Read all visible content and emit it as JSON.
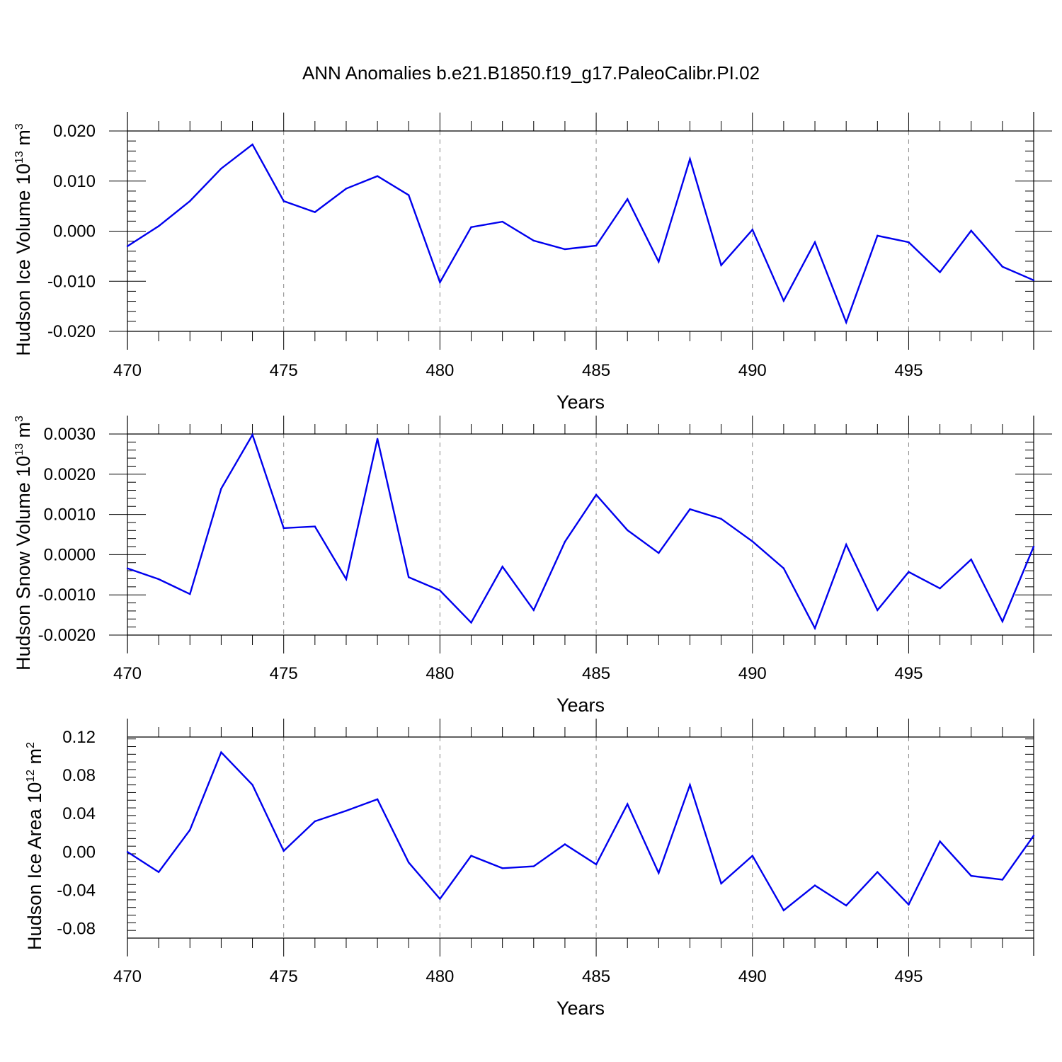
{
  "title": "ANN Anomalies b.e21.B1850.f19_g17.PaleoCalibr.PI.02",
  "line_color": "#0000ee",
  "chart_data": [
    {
      "type": "line",
      "xlabel": "Years",
      "ylabel": {
        "base": "Hudson Ice Volume 10",
        "exp": "13",
        "unit": " m",
        "unit_exp": "3"
      },
      "xlim": [
        470,
        499
      ],
      "ylim": [
        -0.02,
        0.02
      ],
      "xticks": [
        470,
        475,
        480,
        485,
        490,
        495
      ],
      "yticks": [
        -0.02,
        -0.01,
        0.0,
        0.01,
        0.02
      ],
      "ytick_labels": [
        "-0.020",
        "-0.010",
        "0.000",
        "0.010",
        "0.020"
      ],
      "x": [
        470,
        471,
        472,
        473,
        474,
        475,
        476,
        477,
        478,
        479,
        480,
        481,
        482,
        483,
        484,
        485,
        486,
        487,
        488,
        489,
        490,
        491,
        492,
        493,
        494,
        495,
        496,
        497,
        498,
        499
      ],
      "values": [
        -0.003,
        0.001,
        0.006,
        0.0125,
        0.0173,
        0.006,
        0.0038,
        0.0085,
        0.011,
        0.0072,
        -0.0102,
        0.0008,
        0.0019,
        -0.0019,
        -0.0036,
        -0.0029,
        0.0064,
        -0.0061,
        0.0144,
        -0.0068,
        0.0003,
        -0.0139,
        -0.0022,
        -0.0182,
        -0.0009,
        -0.0022,
        -0.0082,
        0.0001,
        -0.0071,
        -0.0098
      ]
    },
    {
      "type": "line",
      "xlabel": "Years",
      "ylabel": {
        "base": "Hudson Snow Volume 10",
        "exp": "13",
        "unit": " m",
        "unit_exp": "3"
      },
      "xlim": [
        470,
        499
      ],
      "ylim": [
        -0.002,
        0.003
      ],
      "xticks": [
        470,
        475,
        480,
        485,
        490,
        495
      ],
      "yticks": [
        -0.002,
        -0.001,
        0.0,
        0.001,
        0.002,
        0.003
      ],
      "ytick_labels": [
        "-0.0020",
        "-0.0010",
        "0.0000",
        "0.0010",
        "0.0020",
        "0.0030"
      ],
      "x": [
        470,
        471,
        472,
        473,
        474,
        475,
        476,
        477,
        478,
        479,
        480,
        481,
        482,
        483,
        484,
        485,
        486,
        487,
        488,
        489,
        490,
        491,
        492,
        493,
        494,
        495,
        496,
        497,
        498,
        499
      ],
      "values": [
        -0.00034,
        -0.00061,
        -0.00098,
        0.00164,
        0.00298,
        0.00066,
        0.0007,
        -0.00061,
        0.00288,
        -0.00056,
        -0.00089,
        -0.00169,
        -0.0003,
        -0.00138,
        0.00032,
        0.00149,
        0.00061,
        4e-05,
        0.00113,
        0.00089,
        0.00033,
        -0.00034,
        -0.00183,
        0.00025,
        -0.00138,
        -0.00043,
        -0.00084,
        -0.00012,
        -0.00166,
        0.0002
      ]
    },
    {
      "type": "line",
      "xlabel": "Years",
      "ylabel": {
        "base": "Hudson Ice Area 10",
        "exp": "12",
        "unit": " m",
        "unit_exp": "2"
      },
      "xlim": [
        470,
        499
      ],
      "ylim": [
        -0.09,
        0.12
      ],
      "xticks": [
        470,
        475,
        480,
        485,
        490,
        495
      ],
      "yticks": [
        -0.08,
        -0.04,
        0.0,
        0.04,
        0.08,
        0.12
      ],
      "ytick_labels": [
        "-0.08",
        "-0.04",
        "0.00",
        "0.04",
        "0.08",
        "0.12"
      ],
      "x": [
        470,
        471,
        472,
        473,
        474,
        475,
        476,
        477,
        478,
        479,
        480,
        481,
        482,
        483,
        484,
        485,
        486,
        487,
        488,
        489,
        490,
        491,
        492,
        493,
        494,
        495,
        496,
        497,
        498,
        499
      ],
      "values": [
        0.0,
        -0.021,
        0.023,
        0.104,
        0.07,
        0.001,
        0.032,
        0.043,
        0.055,
        -0.011,
        -0.049,
        -0.004,
        -0.017,
        -0.015,
        0.008,
        -0.013,
        0.05,
        -0.022,
        0.07,
        -0.033,
        -0.004,
        -0.061,
        -0.035,
        -0.056,
        -0.021,
        -0.055,
        0.011,
        -0.025,
        -0.029,
        0.017
      ]
    }
  ]
}
